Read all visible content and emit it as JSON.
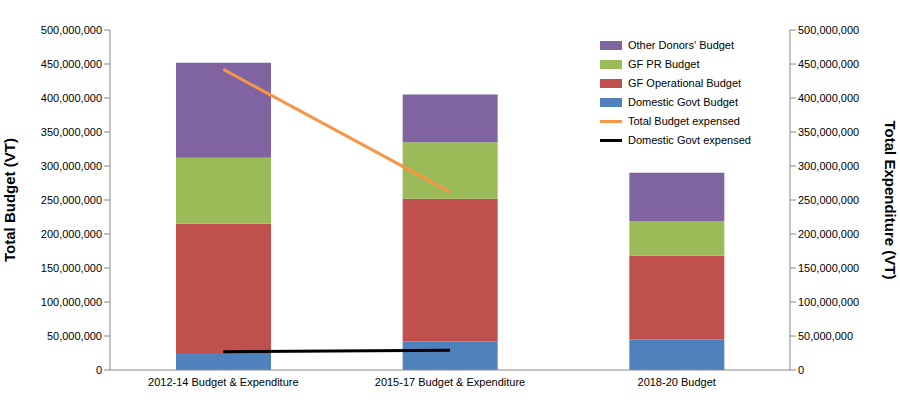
{
  "chart_data": {
    "type": "bar",
    "stacked": true,
    "legend": "top-right",
    "y_label": "Total Budget (VT)",
    "y2_label": "Total Expenditure (VT)",
    "categories": [
      "2012-14 Budget & Expenditure",
      "2015-17 Budget & Expenditure",
      "2018-20 Budget"
    ],
    "ylim": [
      0,
      500000000
    ],
    "yticks": [
      0,
      {
        "value": 50000000,
        "label": "50,000,000"
      },
      {
        "value": 100000000,
        "label": "100,000,000"
      },
      {
        "value": 150000000,
        "label": "150,000,000"
      },
      {
        "value": 200000000,
        "label": "200,000,000"
      },
      {
        "value": 250000000,
        "label": "250,000,000"
      },
      {
        "value": 300000000,
        "label": "300,000,000"
      },
      {
        "value": 350000000,
        "label": "350,000,000"
      },
      {
        "value": 400000000,
        "label": "400,000,000"
      },
      {
        "value": 450000000,
        "label": "450,000,000"
      },
      {
        "value": 500000000,
        "label": "500,000,000"
      }
    ],
    "y2lim": [
      0,
      500000000
    ],
    "y2ticks": [
      0,
      {
        "value": 50000000,
        "label": "50,000,000"
      },
      {
        "value": 100000000,
        "label": "100,000,000"
      },
      {
        "value": 150000000,
        "label": "150,000,000"
      },
      {
        "value": 200000000,
        "label": "200,000,000"
      },
      {
        "value": 250000000,
        "label": "250,000,000"
      },
      {
        "value": 300000000,
        "label": "300,000,000"
      },
      {
        "value": 350000000,
        "label": "350,000,000"
      },
      {
        "value": 400000000,
        "label": "400,000,000"
      },
      {
        "value": 450000000,
        "label": "450,000,000"
      },
      {
        "value": 500000000,
        "label": "500,000,000"
      }
    ],
    "series": [
      {
        "name": "Other Donors' Budget",
        "type": "bar",
        "color": "#8064a2",
        "values": [
          140000000,
          70000000,
          71000000
        ]
      },
      {
        "name": "GF PR Budget",
        "type": "bar",
        "color": "#9bbb59",
        "values": [
          97000000,
          83000000,
          51000000
        ]
      },
      {
        "name": "GF Operational Budget",
        "type": "bar",
        "color": "#c0504d",
        "values": [
          190000000,
          210000000,
          123000000
        ]
      },
      {
        "name": "Domestic Govt Budget",
        "type": "bar",
        "color": "#4f81bd",
        "values": [
          25000000,
          42000000,
          45000000
        ]
      },
      {
        "name": "Total Budget expensed",
        "type": "line",
        "axis": "y2",
        "color": "#f79646",
        "values": [
          442000000,
          262000000,
          null
        ]
      },
      {
        "name": "Domestic Govt expensed",
        "type": "line",
        "axis": "y2",
        "color": "#000000",
        "values": [
          27000000,
          29000000,
          null
        ]
      }
    ]
  }
}
